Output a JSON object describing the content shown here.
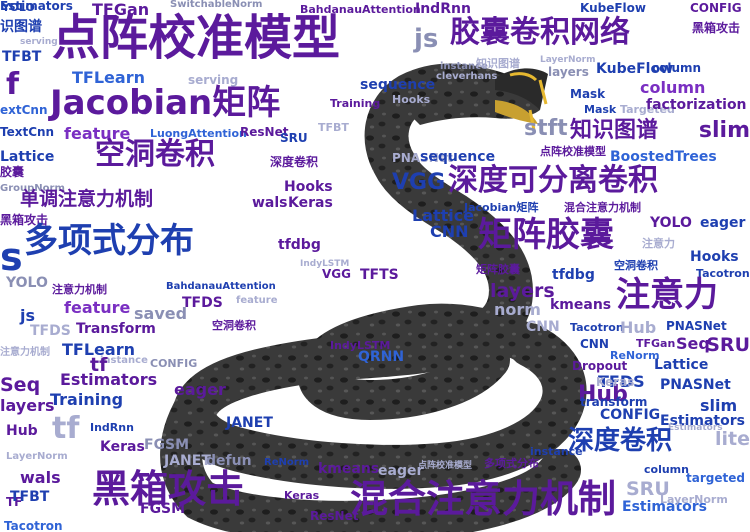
{
  "title_words": [
    "点阵校准模型",
    "胶囊卷积网络",
    "Jacobian矩阵",
    "空洞卷积",
    "深度可分离卷积",
    "多项式分布",
    "矩阵胶囊",
    "注意力",
    "深度卷积",
    "黑箱攻击",
    "混合注意力机制",
    "单调注意力机制",
    "知识图谱"
  ],
  "words": [
    {
      "text": "YOLO",
      "s": "s10",
      "c": "c1"
    },
    {
      "text": "TFGan",
      "s": "s7",
      "c": "c0"
    },
    {
      "text": "SwitchableNorm",
      "s": "s11",
      "c": "c5"
    },
    {
      "text": "BahdanauAttention",
      "s": "s10",
      "c": "c0"
    },
    {
      "text": "IndRnn",
      "s": "s8",
      "c": "c0"
    },
    {
      "text": "KubeFlow",
      "s": "s9",
      "c": "c1"
    },
    {
      "text": "CONFIG",
      "s": "s9",
      "c": "c0"
    },
    {
      "text": "识图谱",
      "s": "s8",
      "c": "c1"
    },
    {
      "text": "serving",
      "s": "s12",
      "c": "c6"
    },
    {
      "text": "点阵校准模型",
      "s": "s0",
      "c": "c0"
    },
    {
      "text": "js",
      "s": "s4",
      "c": "c5"
    },
    {
      "text": "胶囊卷积网络",
      "s": "s3",
      "c": "c0"
    },
    {
      "text": "黑箱攻击",
      "s": "s9",
      "c": "c0"
    },
    {
      "text": "TFBT",
      "s": "s8",
      "c": "c1"
    },
    {
      "text": "TFLearn",
      "s": "s7",
      "c": "c3"
    },
    {
      "text": "serving",
      "s": "s9",
      "c": "c6"
    },
    {
      "text": "instance",
      "s": "s11",
      "c": "c5"
    },
    {
      "text": "知识图谱",
      "s": "s10",
      "c": "c6"
    },
    {
      "text": "LayerNorm",
      "s": "s12",
      "c": "c6"
    },
    {
      "text": "column",
      "s": "s9",
      "c": "c1"
    },
    {
      "text": "f",
      "s": "s3",
      "c": "c0"
    },
    {
      "text": "Jacobian矩阵",
      "s": "s2",
      "c": "c0"
    },
    {
      "text": "cleverhans",
      "s": "s11",
      "c": "c6"
    },
    {
      "text": "layers",
      "s": "s9",
      "c": "c5"
    },
    {
      "text": "KubeFlow",
      "s": "s8",
      "c": "c1"
    },
    {
      "text": "sequence",
      "s": "s8",
      "c": "c1"
    },
    {
      "text": "Mask",
      "s": "s9",
      "c": "c1"
    },
    {
      "text": "column",
      "s": "s7",
      "c": "c2"
    },
    {
      "text": "extCnn",
      "s": "s9",
      "c": "c3"
    },
    {
      "text": "Mask",
      "s": "s10",
      "c": "c1"
    },
    {
      "text": "Targeted",
      "s": "s10",
      "c": "c6"
    },
    {
      "text": "factorization",
      "s": "s8",
      "c": "c0"
    },
    {
      "text": "Training",
      "s": "s10",
      "c": "c0"
    },
    {
      "text": "Hooks",
      "s": "s10",
      "c": "c6"
    },
    {
      "text": "TextCnn",
      "s": "s9",
      "c": "c1"
    },
    {
      "text": "feature",
      "s": "s7",
      "c": "c2"
    },
    {
      "text": "LuongAttention",
      "s": "s10",
      "c": "c3"
    },
    {
      "text": "ResNet",
      "s": "s9",
      "c": "c0"
    },
    {
      "text": "stft",
      "s": "s5",
      "c": "c5"
    },
    {
      "text": "知识图谱",
      "s": "s5",
      "c": "c0"
    },
    {
      "text": "slim",
      "s": "s5",
      "c": "c0"
    },
    {
      "text": "Lattice",
      "s": "s8",
      "c": "c1"
    },
    {
      "text": "空洞卷积",
      "s": "s3",
      "c": "c0"
    },
    {
      "text": "SRU",
      "s": "s9",
      "c": "c1"
    },
    {
      "text": "TFBT",
      "s": "s10",
      "c": "c6"
    },
    {
      "text": "PNASNet",
      "s": "s9",
      "c": "c6"
    },
    {
      "text": "sequence",
      "s": "s8",
      "c": "c1"
    },
    {
      "text": "点阵校准模型",
      "s": "s10",
      "c": "c0"
    },
    {
      "text": "BoostedTrees",
      "s": "s8",
      "c": "c3"
    },
    {
      "text": "胶囊",
      "s": "s9",
      "c": "c0"
    },
    {
      "text": "GroupNorm",
      "s": "s11",
      "c": "c5"
    },
    {
      "text": "深度卷积",
      "s": "s9",
      "c": "c0"
    },
    {
      "text": "Hooks",
      "s": "s8",
      "c": "c0"
    },
    {
      "text": "VGG",
      "s": "s5",
      "c": "c1"
    },
    {
      "text": "深度可分离卷积",
      "s": "s3",
      "c": "c0"
    },
    {
      "text": "单调注意力机制",
      "s": "s6",
      "c": "c0"
    },
    {
      "text": "wals",
      "s": "s8",
      "c": "c0"
    },
    {
      "text": "Keras",
      "s": "s8",
      "c": "c0"
    },
    {
      "text": "Lattice",
      "s": "s7",
      "c": "c1"
    },
    {
      "text": "Jacobian矩阵",
      "s": "s10",
      "c": "c1"
    },
    {
      "text": "混合注意力机制",
      "s": "s10",
      "c": "c0"
    },
    {
      "text": "YOLO",
      "s": "s8",
      "c": "c0"
    },
    {
      "text": "eager",
      "s": "s8",
      "c": "c1"
    },
    {
      "text": "黑箱攻击",
      "s": "s9",
      "c": "c0"
    },
    {
      "text": "CNN",
      "s": "s7",
      "c": "c1"
    },
    {
      "text": "矩阵胶囊",
      "s": "s2",
      "c": "c0"
    },
    {
      "text": "注意力",
      "s": "s10",
      "c": "c6"
    },
    {
      "text": "s",
      "s": "s1",
      "c": "c1"
    },
    {
      "text": "多项式分布",
      "s": "s2",
      "c": "c1"
    },
    {
      "text": "tfdbg",
      "s": "s8",
      "c": "c0"
    },
    {
      "text": "Hooks",
      "s": "s8",
      "c": "c1"
    },
    {
      "text": "Tacotron",
      "s": "s10",
      "c": "c1"
    },
    {
      "text": "IndyLSTM",
      "s": "s12",
      "c": "c6"
    },
    {
      "text": "VGG",
      "s": "s9",
      "c": "c0"
    },
    {
      "text": "TFTS",
      "s": "s8",
      "c": "c0"
    },
    {
      "text": "矩阵胶囊",
      "s": "s10",
      "c": "c0"
    },
    {
      "text": "tfdbg",
      "s": "s8",
      "c": "c1"
    },
    {
      "text": "空洞卷积",
      "s": "s10",
      "c": "c1"
    },
    {
      "text": "YOLO",
      "s": "s8",
      "c": "c5"
    },
    {
      "text": "注意力机制",
      "s": "s10",
      "c": "c0"
    },
    {
      "text": "BahdanauAttention",
      "s": "s11",
      "c": "c1"
    },
    {
      "text": "layers",
      "s": "s6",
      "c": "c0"
    },
    {
      "text": "kmeans",
      "s": "s8",
      "c": "c0"
    },
    {
      "text": "注意力",
      "s": "s2",
      "c": "c0"
    },
    {
      "text": "TFDS",
      "s": "s8",
      "c": "c0"
    },
    {
      "text": "feature",
      "s": "s11",
      "c": "c6"
    },
    {
      "text": "norm",
      "s": "s7",
      "c": "c6"
    },
    {
      "text": "js",
      "s": "s7",
      "c": "c1"
    },
    {
      "text": "feature",
      "s": "s7",
      "c": "c2"
    },
    {
      "text": "saved",
      "s": "s7",
      "c": "c5"
    },
    {
      "text": "空洞卷积",
      "s": "s10",
      "c": "c0"
    },
    {
      "text": "Transform",
      "s": "s8",
      "c": "c0"
    },
    {
      "text": "TFDS",
      "s": "s8",
      "c": "c6"
    },
    {
      "text": "CNN",
      "s": "s8",
      "c": "c6"
    },
    {
      "text": "Tacotron",
      "s": "s10",
      "c": "c1"
    },
    {
      "text": "Hub",
      "s": "s7",
      "c": "c6"
    },
    {
      "text": "PNASNet",
      "s": "s9",
      "c": "c1"
    },
    {
      "text": "注意力机制",
      "s": "s11",
      "c": "c6"
    },
    {
      "text": "CNN",
      "s": "s9",
      "c": "c1"
    },
    {
      "text": "IndyLSTM",
      "s": "s10",
      "c": "c0"
    },
    {
      "text": "TFLearn",
      "s": "s7",
      "c": "c1"
    },
    {
      "text": "instance",
      "s": "s11",
      "c": "c6"
    },
    {
      "text": "QRNN",
      "s": "s8",
      "c": "c3"
    },
    {
      "text": "Seq",
      "s": "s7",
      "c": "c0"
    },
    {
      "text": "TFGan",
      "s": "s10",
      "c": "c0"
    },
    {
      "text": "SRU",
      "s": "s6",
      "c": "c0"
    },
    {
      "text": "ReNorm",
      "s": "s10",
      "c": "c3"
    },
    {
      "text": "Dropout",
      "s": "s9",
      "c": "c0"
    },
    {
      "text": "tf",
      "s": "s6",
      "c": "c0"
    },
    {
      "text": "Seq",
      "s": "s6",
      "c": "c0"
    },
    {
      "text": "Estimators",
      "s": "s7",
      "c": "c0"
    },
    {
      "text": "CONFIG",
      "s": "s10",
      "c": "c5"
    },
    {
      "text": "Lattice",
      "s": "s8",
      "c": "c1"
    },
    {
      "text": "Hub",
      "s": "s5",
      "c": "c0"
    },
    {
      "text": "layers",
      "s": "s7",
      "c": "c0"
    },
    {
      "text": "TFDS",
      "s": "s7",
      "c": "c1"
    },
    {
      "text": "PNASNet",
      "s": "s8",
      "c": "c1"
    },
    {
      "text": "eager",
      "s": "s7",
      "c": "c0"
    },
    {
      "text": "Keras",
      "s": "s9",
      "c": "c6"
    },
    {
      "text": "transform",
      "s": "s9",
      "c": "c1"
    },
    {
      "text": "Training",
      "s": "s7",
      "c": "c1"
    },
    {
      "text": "slim",
      "s": "s7",
      "c": "c1"
    },
    {
      "text": "CONFIG",
      "s": "s8",
      "c": "c1"
    },
    {
      "text": "Estimators",
      "s": "s8",
      "c": "c1"
    },
    {
      "text": "IndRnn",
      "s": "s10",
      "c": "c1"
    },
    {
      "text": "Hub",
      "s": "s8",
      "c": "c0"
    },
    {
      "text": "tf",
      "s": "s3",
      "c": "c6"
    },
    {
      "text": "Estimators",
      "s": "s12",
      "c": "c6"
    },
    {
      "text": "JANET",
      "s": "s8",
      "c": "c1"
    },
    {
      "text": "深度卷积",
      "s": "s4",
      "c": "c1"
    },
    {
      "text": "lite",
      "s": "s6",
      "c": "c6"
    },
    {
      "text": "Keras",
      "s": "s8",
      "c": "c0"
    },
    {
      "text": "FGSM",
      "s": "s8",
      "c": "c5"
    },
    {
      "text": "LayerNorm",
      "s": "s11",
      "c": "c6"
    },
    {
      "text": "JANET",
      "s": "s8",
      "c": "c6"
    },
    {
      "text": "defun",
      "s": "s8",
      "c": "c5"
    },
    {
      "text": "ReNorm",
      "s": "s11",
      "c": "c1"
    },
    {
      "text": "kmeans",
      "s": "s8",
      "c": "c0"
    },
    {
      "text": "eager",
      "s": "s8",
      "c": "c6"
    },
    {
      "text": "点阵校准模型",
      "s": "s12",
      "c": "c6"
    },
    {
      "text": "多项式分布",
      "s": "s10",
      "c": "c0"
    },
    {
      "text": "instance",
      "s": "s10",
      "c": "c1"
    },
    {
      "text": "column",
      "s": "s10",
      "c": "c1"
    },
    {
      "text": "targeted",
      "s": "s9",
      "c": "c3"
    },
    {
      "text": "wals",
      "s": "s7",
      "c": "c0"
    },
    {
      "text": "TF",
      "s": "s9",
      "c": "c0"
    },
    {
      "text": "黑箱攻击",
      "s": "s1",
      "c": "c0"
    },
    {
      "text": "混合注意力机制",
      "s": "s1",
      "c": "c0"
    },
    {
      "text": "TFBT",
      "s": "s8",
      "c": "c1"
    },
    {
      "text": "FGSM",
      "s": "s8",
      "c": "c0"
    },
    {
      "text": "Estimators",
      "s": "s8",
      "c": "c3"
    },
    {
      "text": "Keras",
      "s": "s10",
      "c": "c0"
    },
    {
      "text": "ResNet",
      "s": "s9",
      "c": "c0"
    },
    {
      "text": "SRU",
      "s": "s6",
      "c": "c6"
    },
    {
      "text": "LayerNorm",
      "s": "s10",
      "c": "c6"
    },
    {
      "text": "Tacotron",
      "s": "s9",
      "c": "c3"
    },
    {
      "text": "Estimators",
      "s": "s9",
      "c": "c1"
    }
  ]
}
